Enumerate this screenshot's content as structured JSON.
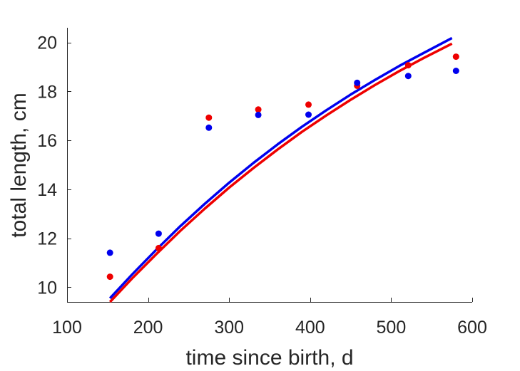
{
  "chart_data": {
    "type": "scatter",
    "title": "",
    "xlabel": "time since birth, d",
    "ylabel": "total length, cm",
    "xlim": [
      100,
      600
    ],
    "ylim": [
      9.4,
      20.6
    ],
    "xticks": [
      100,
      200,
      300,
      400,
      500,
      600
    ],
    "yticks": [
      10,
      12,
      14,
      16,
      18,
      20
    ],
    "grid": false,
    "legend": "none",
    "colors": {
      "red": "#ee0000",
      "blue": "#0000ee"
    },
    "series": [
      {
        "color": "#ee0000",
        "kind": "points",
        "x": [
          153,
          213,
          275,
          336,
          398,
          458,
          521,
          580
        ],
        "y": [
          10.43,
          11.6,
          16.93,
          17.26,
          17.46,
          18.23,
          19.07,
          19.42
        ]
      },
      {
        "color": "#0000ee",
        "kind": "points",
        "x": [
          153,
          213,
          275,
          336,
          398,
          458,
          521,
          580
        ],
        "y": [
          11.41,
          12.19,
          16.52,
          17.04,
          17.05,
          18.35,
          18.63,
          18.84
        ]
      },
      {
        "color": "#ee0000",
        "kind": "line",
        "x": [
          153,
          180,
          210,
          240,
          270,
          300,
          330,
          360,
          390,
          420,
          450,
          480,
          510,
          540,
          575
        ],
        "y": [
          9.4,
          10.35,
          11.35,
          12.31,
          13.21,
          14.07,
          14.87,
          15.63,
          16.35,
          17.02,
          17.66,
          18.26,
          18.83,
          19.36,
          19.95
        ]
      },
      {
        "color": "#0000ee",
        "kind": "line",
        "x": [
          153,
          180,
          210,
          240,
          270,
          300,
          330,
          360,
          390,
          420,
          450,
          480,
          510,
          540,
          575
        ],
        "y": [
          9.55,
          10.51,
          11.53,
          12.5,
          13.41,
          14.27,
          15.08,
          15.84,
          16.56,
          17.23,
          17.87,
          18.47,
          19.04,
          19.57,
          20.18
        ]
      }
    ]
  }
}
